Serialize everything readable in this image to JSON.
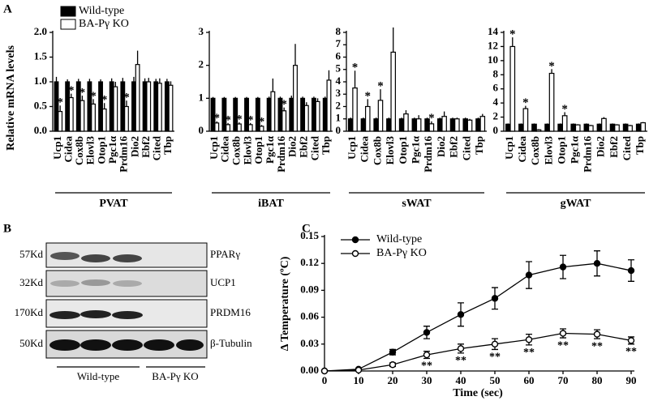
{
  "panels": [
    "A",
    "B",
    "C"
  ],
  "blot": {
    "sizes": [
      "57Kd",
      "32Kd",
      "170Kd",
      "50Kd"
    ],
    "proteins": [
      "PPARγ",
      "UCP1",
      "PRDM16",
      "β-Tubulin"
    ],
    "groups": [
      "Wild-type",
      "BA-Pγ KO"
    ]
  },
  "chart_data": [
    {
      "type": "bar",
      "ylabel": "Relative mRNA levels",
      "xlabel": "PVAT",
      "legend": "upper-left",
      "categories": [
        "Ucp1",
        "Cidea",
        "Cox8b",
        "Elovl3",
        "Otop1",
        "Pgc1α",
        "Prdm16",
        "Dio2",
        "Ebf2",
        "Cited",
        "Tbp"
      ],
      "series": [
        {
          "name": "Wild-type",
          "color": "#000000",
          "values": [
            1,
            1,
            1,
            1,
            1,
            1,
            1,
            1,
            1,
            1,
            1
          ],
          "errors": [
            0.1,
            0.05,
            0.06,
            0.06,
            0.05,
            0.07,
            0.08,
            0.1,
            0.07,
            0.06,
            0.06
          ]
        },
        {
          "name": "BA-Pγ KO",
          "color": "#ffffff",
          "values": [
            0.4,
            0.68,
            0.62,
            0.55,
            0.45,
            0.9,
            0.5,
            1.35,
            1.0,
            0.97,
            0.93
          ],
          "errors": [
            0.12,
            0.08,
            0.1,
            0.1,
            0.12,
            0.1,
            0.12,
            0.28,
            0.08,
            0.1,
            0.08
          ]
        }
      ],
      "significance": [
        "*",
        "*",
        "*",
        "*",
        "*",
        null,
        "*",
        null,
        null,
        null,
        null
      ],
      "ylim": [
        0,
        2
      ],
      "yticks": [
        {
          "value": 0,
          "label": "0.0"
        },
        0.5,
        {
          "value": 1,
          "label": "1.0"
        },
        1.5,
        {
          "value": 2,
          "label": "2.0"
        }
      ]
    },
    {
      "type": "bar",
      "xlabel": "iBAT",
      "categories": [
        "Ucp1",
        "Cidea",
        "Cox8b",
        "Elovl3",
        "Otop1",
        "Pgc1α",
        "Prdm16",
        "Dio2",
        "Ebf2",
        "Cited",
        "Tbp"
      ],
      "series": [
        {
          "color": "#000000",
          "values": [
            1,
            1,
            1,
            1,
            1,
            1,
            1,
            1,
            1,
            1,
            1
          ],
          "errors": [
            0.04,
            0.04,
            0.04,
            0.04,
            0.04,
            0.05,
            0.05,
            0.08,
            0.05,
            0.05,
            0.05
          ]
        },
        {
          "color": "#ffffff",
          "values": [
            0.25,
            0.2,
            0.22,
            0.2,
            0.15,
            1.2,
            0.62,
            2.0,
            0.78,
            0.9,
            1.55
          ],
          "errors": [
            0.05,
            0.05,
            0.05,
            0.05,
            0.04,
            0.4,
            0.1,
            0.65,
            0.1,
            0.1,
            0.3
          ]
        }
      ],
      "significance": [
        "*",
        "*",
        "*",
        "*",
        "*",
        null,
        "*",
        null,
        null,
        null,
        null
      ],
      "ylim": [
        0,
        3
      ],
      "yticks": [
        0,
        1,
        2,
        3
      ]
    },
    {
      "type": "bar",
      "xlabel": "sWAT",
      "categories": [
        "Ucp1",
        "Cidea",
        "Cox8b",
        "Elovl3",
        "Otop1",
        "Pgc1α",
        "Prdm16",
        "Dio2",
        "Ebf2",
        "Cited",
        "Tbp"
      ],
      "series": [
        {
          "color": "#000000",
          "values": [
            1,
            1,
            1,
            1,
            1,
            1,
            1,
            1,
            1,
            1,
            1
          ],
          "errors": [
            0.1,
            0.1,
            0.1,
            0.1,
            0.1,
            0.1,
            0.1,
            0.1,
            0.1,
            0.1,
            0.1
          ]
        },
        {
          "color": "#ffffff",
          "values": [
            3.5,
            2.0,
            2.5,
            6.4,
            1.4,
            1.0,
            0.6,
            1.2,
            1.0,
            0.9,
            1.2
          ],
          "errors": [
            1.4,
            0.6,
            0.9,
            2.0,
            0.3,
            0.3,
            0.2,
            0.4,
            0.1,
            0.1,
            0.2
          ]
        }
      ],
      "significance": [
        "*",
        "*",
        "*",
        null,
        null,
        null,
        "*",
        null,
        null,
        null,
        null
      ],
      "ylim": [
        0,
        8
      ],
      "yticks": [
        0,
        1,
        2,
        3,
        4,
        5,
        6,
        7,
        8
      ]
    },
    {
      "type": "bar",
      "xlabel": "gWAT",
      "categories": [
        "Ucp1",
        "Cidea",
        "Cox8b",
        "Elovl3",
        "Otop1",
        "Pgc1α",
        "Prdm16",
        "Dio2",
        "Ebf2",
        "Cited",
        "Tbp"
      ],
      "series": [
        {
          "color": "#000000",
          "values": [
            1,
            1,
            1,
            1,
            1,
            1,
            1,
            1,
            1,
            1,
            1
          ],
          "errors": [
            0.1,
            0.1,
            0.1,
            0.1,
            0.1,
            0.1,
            0.1,
            0.1,
            0.1,
            0.1,
            0.1
          ]
        },
        {
          "color": "#ffffff",
          "values": [
            12,
            3.2,
            0.2,
            8.2,
            2.2,
            0.9,
            0.8,
            1.8,
            0.9,
            0.8,
            1.2
          ],
          "errors": [
            1.3,
            0.4,
            0.1,
            0.6,
            0.5,
            0.1,
            0.1,
            0.2,
            0.1,
            0.1,
            0.1
          ]
        }
      ],
      "significance": [
        "*",
        "*",
        null,
        "*",
        "*",
        null,
        null,
        null,
        null,
        null,
        null
      ],
      "ylim": [
        0,
        14
      ],
      "yticks": [
        0,
        2,
        4,
        6,
        8,
        10,
        12,
        14
      ]
    },
    {
      "type": "line",
      "xlabel": "Time (sec)",
      "ylabel": "Δ Temperature (ºC)",
      "legend": "upper-left",
      "x": [
        0,
        10,
        20,
        30,
        40,
        50,
        60,
        70,
        80,
        90
      ],
      "series": [
        {
          "name": "Wild-type",
          "color": "#000000",
          "fill": "#000000",
          "values": [
            0,
            0.002,
            0.021,
            0.043,
            0.063,
            0.081,
            0.107,
            0.116,
            0.12,
            0.112
          ],
          "errors": [
            0,
            0.001,
            0.003,
            0.007,
            0.013,
            0.012,
            0.015,
            0.013,
            0.014,
            0.012
          ]
        },
        {
          "name": "BA-Pγ KO",
          "color": "#000000",
          "fill": "#ffffff",
          "values": [
            0,
            0.001,
            0.007,
            0.018,
            0.025,
            0.03,
            0.035,
            0.042,
            0.041,
            0.034
          ],
          "errors": [
            0,
            0.001,
            0.002,
            0.004,
            0.005,
            0.006,
            0.006,
            0.005,
            0.005,
            0.004
          ]
        }
      ],
      "significance": [
        null,
        null,
        null,
        "**",
        "**",
        "**",
        "**",
        "**",
        "**",
        "**"
      ],
      "xlim": [
        0,
        90
      ],
      "xticks": [
        0,
        10,
        20,
        30,
        40,
        50,
        60,
        70,
        80,
        90
      ],
      "ylim": [
        0,
        0.15
      ],
      "yticks": [
        {
          "value": 0,
          "label": "0.00"
        },
        0.03,
        0.06,
        0.09,
        0.12,
        0.15
      ]
    }
  ]
}
